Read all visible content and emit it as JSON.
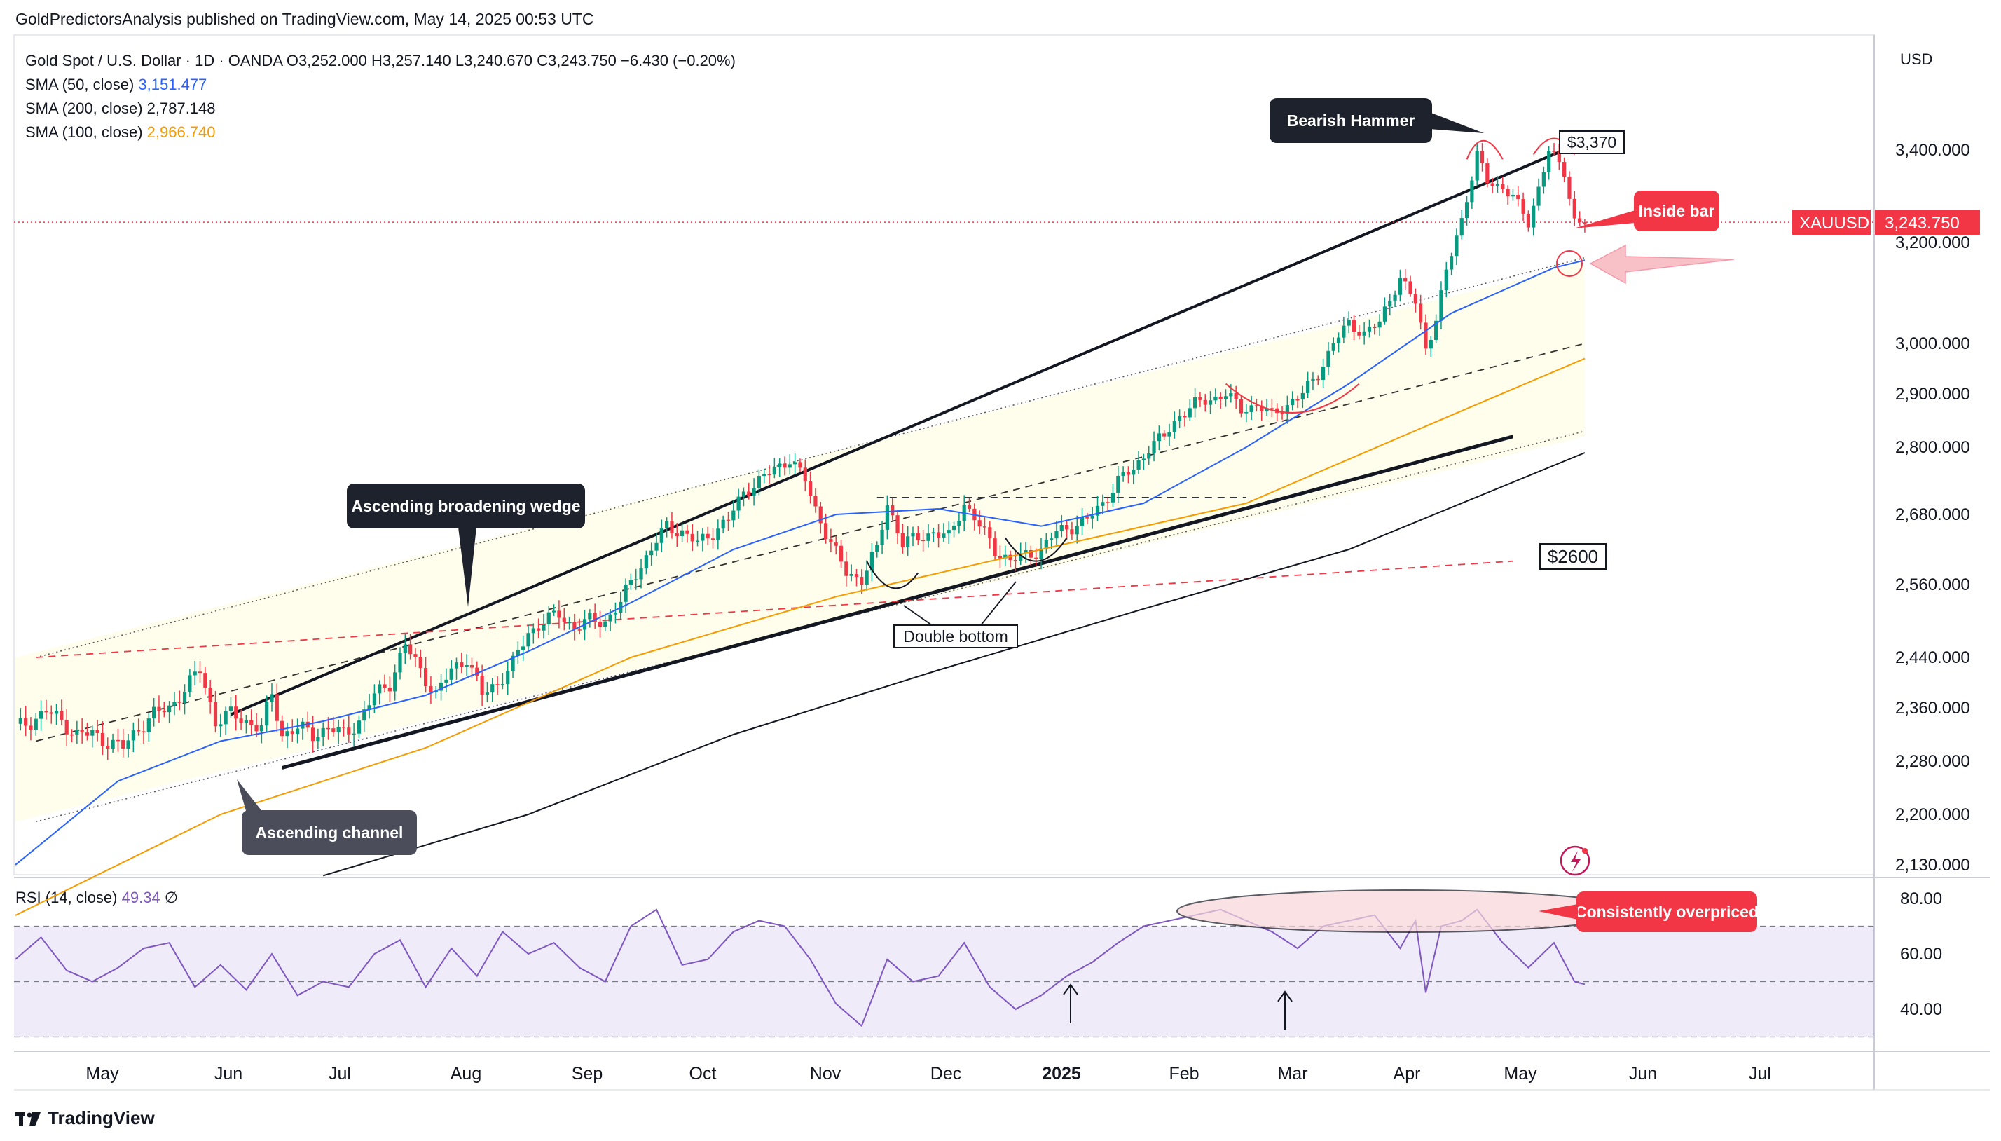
{
  "header": {
    "publisher_line": "GoldPredictorsAnalysis published on TradingView.com, May 14, 2025 00:53 UTC"
  },
  "legend": {
    "symbol_line": "Gold Spot / U.S. Dollar · 1D · OANDA",
    "open": "O3,252.000",
    "high": "H3,257.140",
    "low": "L3,240.670",
    "close": "C3,243.750",
    "change": "−6.430 (−0.20%)",
    "sma50_label": "SMA (50, close)",
    "sma50_value": "3,151.477",
    "sma200_label": "SMA (200, close)",
    "sma200_value": "2,787.148",
    "sma100_label": "SMA (100, close)",
    "sma100_value": "2,966.740"
  },
  "currency": "USD",
  "rsi_legend": {
    "label": "RSI (14, close)",
    "value": "49.34",
    "extra": "∅"
  },
  "brand": {
    "name": "TradingView"
  },
  "colors": {
    "up": "#089981",
    "down": "#f23645",
    "sma50": "#2962ff",
    "sma100": "#f59b00",
    "sma200": "#131722",
    "rsi": "#7e57c2",
    "label_red": "#f23645",
    "callout_dark": "#1e222d"
  },
  "chart_data": [
    {
      "type": "candlestick",
      "symbol": "XAUUSD",
      "interval": "1D",
      "price_axis_ticks": [
        "3,400.000",
        "3,200.000",
        "3,000.000",
        "2,900.000",
        "2,800.000",
        "2,680.000",
        "2,560.000",
        "2,440.000",
        "2,360.000",
        "2,280.000",
        "2,200.000",
        "2,130.000"
      ],
      "price_axis_values": [
        3400,
        3200,
        3000,
        2900,
        2800,
        2680,
        2560,
        2440,
        2360,
        2280,
        2200,
        2130
      ],
      "time_axis_labels": [
        "May",
        "Jun",
        "Jul",
        "Aug",
        "Sep",
        "Oct",
        "Nov",
        "Dec",
        "2025",
        "Feb",
        "Mar",
        "Apr",
        "May",
        "Jun",
        "Jul"
      ],
      "last_price_label": {
        "symbol": "XAUUSD",
        "price": "3,243.750",
        "value": 3243.75
      },
      "price_path": [
        [
          0,
          2330
        ],
        [
          3,
          2340
        ],
        [
          6,
          2355
        ],
        [
          9,
          2340
        ],
        [
          12,
          2320
        ],
        [
          15,
          2320
        ],
        [
          18,
          2310
        ],
        [
          21,
          2300
        ],
        [
          24,
          2330
        ],
        [
          27,
          2350
        ],
        [
          30,
          2360
        ],
        [
          33,
          2390
        ],
        [
          36,
          2420
        ],
        [
          39,
          2340
        ],
        [
          42,
          2350
        ],
        [
          45,
          2340
        ],
        [
          48,
          2330
        ],
        [
          50,
          2380
        ],
        [
          52,
          2320
        ],
        [
          55,
          2330
        ],
        [
          58,
          2320
        ],
        [
          61,
          2330
        ],
        [
          64,
          2320
        ],
        [
          67,
          2340
        ],
        [
          70,
          2380
        ],
        [
          73,
          2400
        ],
        [
          76,
          2460
        ],
        [
          79,
          2420
        ],
        [
          82,
          2380
        ],
        [
          85,
          2420
        ],
        [
          88,
          2440
        ],
        [
          91,
          2380
        ],
        [
          94,
          2400
        ],
        [
          97,
          2430
        ],
        [
          100,
          2480
        ],
        [
          103,
          2500
        ],
        [
          106,
          2510
        ],
        [
          109,
          2490
        ],
        [
          112,
          2500
        ],
        [
          115,
          2500
        ],
        [
          118,
          2530
        ],
        [
          121,
          2580
        ],
        [
          124,
          2620
        ],
        [
          127,
          2660
        ],
        [
          130,
          2650
        ],
        [
          133,
          2630
        ],
        [
          136,
          2650
        ],
        [
          139,
          2670
        ],
        [
          142,
          2720
        ],
        [
          145,
          2740
        ],
        [
          148,
          2760
        ],
        [
          151,
          2780
        ],
        [
          154,
          2740
        ],
        [
          156,
          2690
        ],
        [
          159,
          2630
        ],
        [
          162,
          2580
        ],
        [
          165,
          2570
        ],
        [
          168,
          2620
        ],
        [
          170,
          2700
        ],
        [
          173,
          2630
        ],
        [
          176,
          2640
        ],
        [
          179,
          2650
        ],
        [
          182,
          2640
        ],
        [
          185,
          2700
        ],
        [
          188,
          2660
        ],
        [
          191,
          2620
        ],
        [
          194,
          2600
        ],
        [
          197,
          2610
        ],
        [
          200,
          2620
        ],
        [
          203,
          2650
        ],
        [
          206,
          2660
        ],
        [
          209,
          2670
        ],
        [
          212,
          2700
        ],
        [
          215,
          2740
        ],
        [
          218,
          2760
        ],
        [
          221,
          2800
        ],
        [
          224,
          2820
        ],
        [
          227,
          2860
        ],
        [
          230,
          2880
        ],
        [
          233,
          2890
        ],
        [
          236,
          2900
        ],
        [
          239,
          2870
        ],
        [
          242,
          2880
        ],
        [
          245,
          2860
        ],
        [
          248,
          2880
        ],
        [
          251,
          2900
        ],
        [
          254,
          2940
        ],
        [
          257,
          3000
        ],
        [
          260,
          3040
        ],
        [
          263,
          3020
        ],
        [
          266,
          3040
        ],
        [
          268,
          3090
        ],
        [
          270,
          3130
        ],
        [
          273,
          3080
        ],
        [
          275,
          2990
        ],
        [
          277,
          3050
        ],
        [
          279,
          3140
        ],
        [
          282,
          3250
        ],
        [
          285,
          3390
        ],
        [
          287,
          3330
        ],
        [
          290,
          3320
        ],
        [
          292,
          3300
        ],
        [
          295,
          3240
        ],
        [
          297,
          3320
        ],
        [
          299,
          3400
        ],
        [
          302,
          3350
        ],
        [
          304,
          3250
        ],
        [
          306,
          3244
        ]
      ],
      "sma50_path": [
        [
          0,
          2130
        ],
        [
          20,
          2250
        ],
        [
          40,
          2310
        ],
        [
          60,
          2340
        ],
        [
          80,
          2380
        ],
        [
          100,
          2450
        ],
        [
          120,
          2530
        ],
        [
          140,
          2620
        ],
        [
          160,
          2680
        ],
        [
          180,
          2690
        ],
        [
          200,
          2660
        ],
        [
          220,
          2700
        ],
        [
          240,
          2800
        ],
        [
          260,
          2920
        ],
        [
          280,
          3060
        ],
        [
          300,
          3150
        ],
        [
          306,
          3165
        ]
      ],
      "sma100_path": [
        [
          0,
          2060
        ],
        [
          40,
          2200
        ],
        [
          80,
          2300
        ],
        [
          120,
          2440
        ],
        [
          160,
          2540
        ],
        [
          200,
          2620
        ],
        [
          240,
          2700
        ],
        [
          280,
          2860
        ],
        [
          306,
          2970
        ]
      ],
      "sma200_path": [
        [
          60,
          2115
        ],
        [
          100,
          2200
        ],
        [
          140,
          2320
        ],
        [
          180,
          2420
        ],
        [
          220,
          2520
        ],
        [
          260,
          2620
        ],
        [
          306,
          2790
        ]
      ],
      "rsi": {
        "label": "RSI (14, close)",
        "value": 49.34,
        "axis_ticks": [
          "80.00",
          "60.00",
          "40.00"
        ],
        "axis_values": [
          80,
          60,
          40
        ],
        "overbought": 70,
        "middle": 50,
        "oversold": 30,
        "path": [
          [
            0,
            58
          ],
          [
            5,
            66
          ],
          [
            10,
            54
          ],
          [
            15,
            50
          ],
          [
            20,
            55
          ],
          [
            25,
            62
          ],
          [
            30,
            64
          ],
          [
            35,
            48
          ],
          [
            40,
            56
          ],
          [
            45,
            47
          ],
          [
            50,
            60
          ],
          [
            55,
            45
          ],
          [
            60,
            50
          ],
          [
            65,
            48
          ],
          [
            70,
            60
          ],
          [
            75,
            65
          ],
          [
            80,
            48
          ],
          [
            85,
            62
          ],
          [
            90,
            52
          ],
          [
            95,
            68
          ],
          [
            100,
            60
          ],
          [
            105,
            64
          ],
          [
            110,
            55
          ],
          [
            115,
            50
          ],
          [
            120,
            70
          ],
          [
            125,
            76
          ],
          [
            130,
            56
          ],
          [
            135,
            58
          ],
          [
            140,
            68
          ],
          [
            145,
            72
          ],
          [
            150,
            70
          ],
          [
            155,
            58
          ],
          [
            160,
            42
          ],
          [
            165,
            34
          ],
          [
            170,
            58
          ],
          [
            175,
            50
          ],
          [
            180,
            52
          ],
          [
            185,
            64
          ],
          [
            190,
            48
          ],
          [
            195,
            40
          ],
          [
            200,
            45
          ],
          [
            205,
            52
          ],
          [
            210,
            57
          ],
          [
            215,
            64
          ],
          [
            220,
            70
          ],
          [
            225,
            72
          ],
          [
            230,
            74
          ],
          [
            235,
            76
          ],
          [
            240,
            72
          ],
          [
            245,
            68
          ],
          [
            250,
            62
          ],
          [
            255,
            70
          ],
          [
            260,
            72
          ],
          [
            265,
            74
          ],
          [
            270,
            62
          ],
          [
            273,
            72
          ],
          [
            275,
            46
          ],
          [
            278,
            70
          ],
          [
            282,
            72
          ],
          [
            285,
            76
          ],
          [
            290,
            64
          ],
          [
            295,
            55
          ],
          [
            300,
            64
          ],
          [
            304,
            50
          ],
          [
            306,
            49
          ]
        ]
      },
      "annotations": {
        "bearish_hammer": "Bearish Hammer",
        "price_3370": "$3,370",
        "inside_bar": "Inside bar",
        "broadening_wedge": "Ascending broadening wedge",
        "ascending_channel": "Ascending channel",
        "double_bottom": "Double bottom",
        "price_2600": "$2600",
        "consistently_overpriced": "Consistently overpriced"
      }
    }
  ]
}
